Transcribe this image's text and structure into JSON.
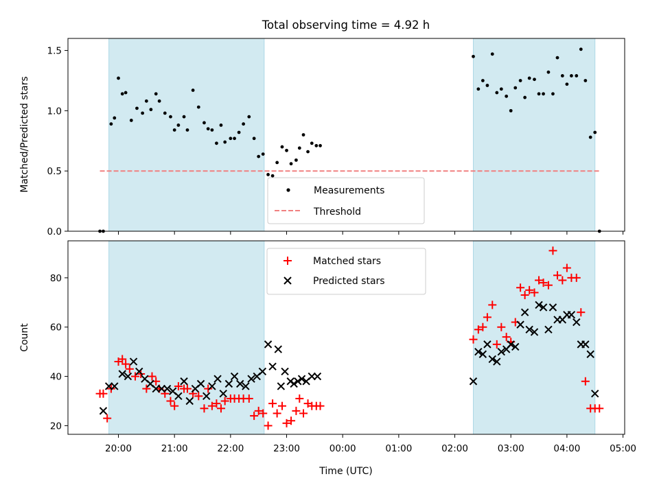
{
  "figure": {
    "title": "Total observing time = 4.92 h",
    "xlabel": "Time (UTC)"
  },
  "colors": {
    "shade": "#add8e6",
    "measurements": "#000000",
    "threshold": "#f08080",
    "matched": "#ff0000",
    "predicted": "#000000"
  },
  "chart_data": [
    {
      "type": "scatter",
      "ylabel": "Matched/Predicted stars",
      "ylim": [
        0,
        1.6
      ],
      "yticks": [
        0.0,
        0.5,
        1.0,
        1.5
      ],
      "xlim_hours": [
        19.1,
        29.03
      ],
      "shaded_intervals_hours": [
        [
          19.83,
          22.6
        ],
        [
          26.33,
          28.5
        ]
      ],
      "threshold": 0.5,
      "threshold_x_hours": [
        19.67,
        28.58
      ],
      "legend": {
        "placement": "lower center",
        "entries": [
          "Measurements",
          "Threshold"
        ]
      },
      "series": [
        {
          "name": "Measurements",
          "marker": "dot",
          "x_hours": [
            19.67,
            19.73,
            19.87,
            19.93,
            20.0,
            20.07,
            20.13,
            20.23,
            20.33,
            20.43,
            20.5,
            20.58,
            20.67,
            20.73,
            20.83,
            20.93,
            21.0,
            21.07,
            21.17,
            21.23,
            21.33,
            21.43,
            21.53,
            21.6,
            21.67,
            21.75,
            21.83,
            21.9,
            22.0,
            22.07,
            22.15,
            22.23,
            22.33,
            22.42,
            22.5,
            22.58,
            22.67,
            22.75,
            22.83,
            22.92,
            23.0,
            23.08,
            23.17,
            23.23,
            23.3,
            23.38,
            23.45,
            23.53,
            23.6,
            26.33,
            26.42,
            26.5,
            26.58,
            26.67,
            26.75,
            26.83,
            26.92,
            27.0,
            27.08,
            27.17,
            27.25,
            27.33,
            27.42,
            27.5,
            27.58,
            27.67,
            27.75,
            27.83,
            27.92,
            28.0,
            28.08,
            28.17,
            28.25,
            28.33,
            28.42,
            28.5,
            28.58
          ],
          "values": [
            0.0,
            0.0,
            0.89,
            0.94,
            1.27,
            1.14,
            1.15,
            0.92,
            1.02,
            0.98,
            1.08,
            1.01,
            1.14,
            1.08,
            0.98,
            0.95,
            0.84,
            0.88,
            0.95,
            0.84,
            1.17,
            1.03,
            0.9,
            0.85,
            0.84,
            0.73,
            0.88,
            0.74,
            0.77,
            0.77,
            0.82,
            0.89,
            0.95,
            0.77,
            0.62,
            0.64,
            0.47,
            0.46,
            0.57,
            0.7,
            0.67,
            0.56,
            0.59,
            0.69,
            0.8,
            0.66,
            0.73,
            0.71,
            0.71,
            1.45,
            1.18,
            1.25,
            1.21,
            1.47,
            1.15,
            1.18,
            1.12,
            1.0,
            1.19,
            1.25,
            1.11,
            1.27,
            1.26,
            1.14,
            1.14,
            1.32,
            1.14,
            1.44,
            1.29,
            1.22,
            1.29,
            1.29,
            1.51,
            1.25,
            0.78,
            0.82,
            0.0
          ]
        },
        {
          "name": "Threshold",
          "style": "dashed line"
        }
      ]
    },
    {
      "type": "scatter",
      "ylabel": "Count",
      "ylim": [
        16.5,
        95
      ],
      "yticks": [
        20,
        40,
        60,
        80
      ],
      "xlim_hours": [
        19.1,
        29.03
      ],
      "xticks": [
        "20:00",
        "21:00",
        "22:00",
        "23:00",
        "00:00",
        "01:00",
        "02:00",
        "03:00",
        "04:00",
        "05:00"
      ],
      "xtick_hours": [
        20,
        21,
        22,
        23,
        24,
        25,
        26,
        27,
        28,
        29
      ],
      "shaded_intervals_hours": [
        [
          19.83,
          22.6
        ],
        [
          26.33,
          28.5
        ]
      ],
      "legend": {
        "placement": "upper center",
        "entries": [
          "Matched stars",
          "Predicted stars"
        ]
      },
      "series": [
        {
          "name": "Matched stars",
          "marker": "plus",
          "x_hours": [
            19.67,
            19.73,
            19.8,
            19.87,
            20.0,
            20.07,
            20.13,
            20.2,
            20.3,
            20.4,
            20.5,
            20.6,
            20.67,
            20.73,
            20.83,
            20.93,
            21.0,
            21.07,
            21.17,
            21.23,
            21.33,
            21.43,
            21.53,
            21.6,
            21.67,
            21.75,
            21.83,
            21.9,
            22.0,
            22.07,
            22.15,
            22.23,
            22.33,
            22.42,
            22.5,
            22.58,
            22.67,
            22.75,
            22.83,
            22.92,
            23.0,
            23.08,
            23.17,
            23.23,
            23.3,
            23.38,
            23.45,
            23.53,
            23.6,
            26.33,
            26.42,
            26.5,
            26.58,
            26.67,
            26.75,
            26.83,
            26.92,
            27.0,
            27.08,
            27.17,
            27.25,
            27.33,
            27.42,
            27.5,
            27.58,
            27.67,
            27.75,
            27.83,
            27.92,
            28.0,
            28.08,
            28.17,
            28.25,
            28.33,
            28.42,
            28.5,
            28.58
          ],
          "values": [
            33,
            33,
            23,
            35,
            46,
            47,
            45,
            43,
            40,
            41,
            35,
            40,
            38,
            35,
            33,
            30,
            28,
            36,
            35,
            35,
            33,
            32,
            27,
            35,
            28,
            29,
            27,
            30,
            31,
            31,
            31,
            31,
            31,
            24,
            26,
            25,
            20,
            29,
            25,
            28,
            21,
            22,
            26,
            31,
            25,
            29,
            28,
            28,
            28,
            55,
            59,
            60,
            64,
            69,
            53,
            60,
            56,
            54,
            62,
            76,
            73,
            75,
            74,
            79,
            78,
            77,
            91,
            81,
            79,
            84,
            80,
            80,
            66,
            38,
            27,
            27,
            27
          ],
          "x_hours_note": ""
        },
        {
          "name": "Predicted stars",
          "marker": "x",
          "x_hours": [
            19.73,
            19.83,
            19.93,
            20.07,
            20.17,
            20.27,
            20.37,
            20.47,
            20.57,
            20.67,
            20.77,
            20.87,
            20.97,
            21.07,
            21.17,
            21.27,
            21.37,
            21.47,
            21.57,
            21.67,
            21.77,
            21.87,
            21.97,
            22.07,
            22.17,
            22.27,
            22.37,
            22.47,
            22.57,
            22.67,
            22.75,
            22.85,
            22.9,
            22.97,
            23.07,
            23.13,
            23.2,
            23.27,
            23.35,
            23.45,
            23.55,
            26.33,
            26.42,
            26.5,
            26.58,
            26.67,
            26.75,
            26.83,
            26.92,
            27.0,
            27.08,
            27.17,
            27.25,
            27.33,
            27.42,
            27.5,
            27.58,
            27.67,
            27.75,
            27.83,
            27.92,
            28.0,
            28.08,
            28.17,
            28.25,
            28.33,
            28.42,
            28.5
          ],
          "values": [
            26,
            36,
            36,
            41,
            40,
            46,
            42,
            39,
            37,
            35,
            35,
            35,
            34,
            32,
            38,
            30,
            35,
            37,
            32,
            36,
            39,
            33,
            37,
            40,
            37,
            36,
            39,
            40,
            42,
            53,
            44,
            51,
            36,
            42,
            38,
            37,
            38,
            39,
            38,
            40,
            40,
            38,
            50,
            49,
            53,
            47,
            46,
            50,
            51,
            53,
            52,
            61,
            66,
            59,
            58,
            69,
            68,
            59,
            68,
            63,
            63,
            65,
            65,
            62,
            53,
            53,
            49,
            33
          ]
        }
      ]
    }
  ]
}
